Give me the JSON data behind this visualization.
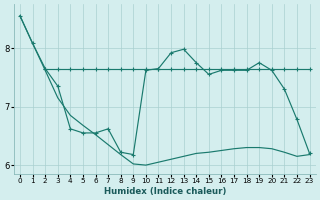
{
  "xlabel": "Humidex (Indice chaleur)",
  "bg_color": "#d4eeee",
  "grid_color": "#aad0d0",
  "line_color": "#1a7a6e",
  "xlim": [
    -0.5,
    23.5
  ],
  "ylim": [
    5.85,
    8.75
  ],
  "yticks": [
    6,
    7,
    8
  ],
  "xticks": [
    0,
    1,
    2,
    3,
    4,
    5,
    6,
    7,
    8,
    9,
    10,
    11,
    12,
    13,
    14,
    15,
    16,
    17,
    18,
    19,
    20,
    21,
    22,
    23
  ],
  "line_diag_x": [
    0,
    1,
    2,
    3,
    4,
    5,
    6,
    7,
    8,
    9,
    10,
    11,
    12,
    13,
    14,
    15,
    16,
    17,
    18,
    19,
    20,
    21,
    22,
    23
  ],
  "line_diag_y": [
    8.55,
    8.08,
    7.62,
    7.15,
    6.85,
    6.68,
    6.52,
    6.35,
    6.18,
    6.02,
    6.0,
    6.05,
    6.1,
    6.15,
    6.2,
    6.22,
    6.25,
    6.28,
    6.3,
    6.3,
    6.28,
    6.22,
    6.15,
    6.18
  ],
  "line_flat_x": [
    2,
    3,
    4,
    5,
    6,
    7,
    8,
    9,
    10,
    11,
    12,
    13,
    14,
    15,
    16,
    17,
    18,
    19,
    20,
    21,
    22,
    23
  ],
  "line_flat_y": [
    7.65,
    7.65,
    7.65,
    7.65,
    7.65,
    7.65,
    7.65,
    7.65,
    7.65,
    7.65,
    7.65,
    7.65,
    7.65,
    7.65,
    7.65,
    7.65,
    7.65,
    7.65,
    7.65,
    7.65,
    7.65,
    7.65
  ],
  "line_zig_x": [
    0,
    1,
    2,
    3,
    4,
    5,
    6,
    7,
    8,
    9,
    10,
    11,
    12,
    13,
    14,
    15,
    16,
    17,
    18,
    19,
    20,
    21,
    22,
    23
  ],
  "line_zig_y": [
    8.55,
    8.08,
    7.65,
    7.35,
    6.62,
    6.55,
    6.55,
    6.62,
    6.22,
    6.18,
    7.62,
    7.65,
    7.92,
    7.98,
    7.75,
    7.55,
    7.62,
    7.62,
    7.62,
    7.75,
    7.62,
    7.3,
    6.78,
    6.2
  ]
}
